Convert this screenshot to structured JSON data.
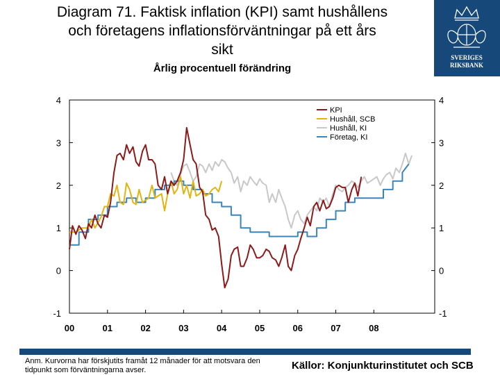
{
  "header": {
    "title_lines": [
      "Diagram 71. Faktisk inflation (KPI) samt hushållens",
      "och företagens inflationsförväntningar på ett års",
      "sikt"
    ],
    "subtitle": "Årlig procentuell förändring"
  },
  "logo": {
    "text_lines": [
      "SVERIGES",
      "RIKSBANK"
    ],
    "colors": {
      "background": "#17487a",
      "ornament": "#ffffff"
    }
  },
  "chart_data": {
    "type": "line",
    "xlabel": "",
    "ylabel": "",
    "xlim": [
      0,
      9.6
    ],
    "ylim": [
      -1,
      4
    ],
    "yticks": [
      -1,
      0,
      1,
      2,
      3,
      4
    ],
    "xtick_labels": [
      "00",
      "01",
      "02",
      "03",
      "04",
      "05",
      "06",
      "07",
      "08"
    ],
    "xtick_positions": [
      0,
      1,
      2,
      3,
      4,
      5,
      6,
      7,
      8
    ],
    "grid": false,
    "legend_position": "top-right",
    "series": [
      {
        "name": "KPI",
        "color": "#8b1a1a",
        "points": [
          [
            0.0,
            0.5
          ],
          [
            0.08,
            1.05
          ],
          [
            0.17,
            0.85
          ],
          [
            0.25,
            1.05
          ],
          [
            0.33,
            0.95
          ],
          [
            0.42,
            0.75
          ],
          [
            0.5,
            1.1
          ],
          [
            0.58,
            1.0
          ],
          [
            0.67,
            1.3
          ],
          [
            0.75,
            1.1
          ],
          [
            0.83,
            1.0
          ],
          [
            0.92,
            1.3
          ],
          [
            1.0,
            1.25
          ],
          [
            1.08,
            1.6
          ],
          [
            1.17,
            2.3
          ],
          [
            1.25,
            2.7
          ],
          [
            1.33,
            2.75
          ],
          [
            1.42,
            2.6
          ],
          [
            1.5,
            2.95
          ],
          [
            1.58,
            2.75
          ],
          [
            1.67,
            2.9
          ],
          [
            1.75,
            2.55
          ],
          [
            1.83,
            2.45
          ],
          [
            1.92,
            2.8
          ],
          [
            2.0,
            2.95
          ],
          [
            2.08,
            2.6
          ],
          [
            2.17,
            2.6
          ],
          [
            2.25,
            2.5
          ],
          [
            2.33,
            2.0
          ],
          [
            2.42,
            1.9
          ],
          [
            2.5,
            2.2
          ],
          [
            2.58,
            1.8
          ],
          [
            2.67,
            2.1
          ],
          [
            2.75,
            2.0
          ],
          [
            2.83,
            2.1
          ],
          [
            2.92,
            2.3
          ],
          [
            3.0,
            2.6
          ],
          [
            3.08,
            3.35
          ],
          [
            3.17,
            2.95
          ],
          [
            3.25,
            2.6
          ],
          [
            3.33,
            2.5
          ],
          [
            3.42,
            1.95
          ],
          [
            3.5,
            1.85
          ],
          [
            3.58,
            1.3
          ],
          [
            3.67,
            1.2
          ],
          [
            3.75,
            0.95
          ],
          [
            3.83,
            1.0
          ],
          [
            3.92,
            0.8
          ],
          [
            4.0,
            0.15
          ],
          [
            4.08,
            -0.4
          ],
          [
            4.17,
            -0.2
          ],
          [
            4.25,
            0.35
          ],
          [
            4.33,
            0.5
          ],
          [
            4.42,
            0.55
          ],
          [
            4.5,
            0.1
          ],
          [
            4.58,
            0.1
          ],
          [
            4.67,
            0.3
          ],
          [
            4.75,
            0.6
          ],
          [
            4.83,
            0.5
          ],
          [
            4.92,
            0.3
          ],
          [
            5.0,
            0.3
          ],
          [
            5.08,
            0.35
          ],
          [
            5.17,
            0.5
          ],
          [
            5.25,
            0.45
          ],
          [
            5.33,
            0.3
          ],
          [
            5.42,
            0.25
          ],
          [
            5.5,
            0.1
          ],
          [
            5.58,
            0.3
          ],
          [
            5.67,
            0.6
          ],
          [
            5.75,
            0.1
          ],
          [
            5.83,
            0.0
          ],
          [
            5.92,
            0.35
          ],
          [
            6.0,
            0.5
          ],
          [
            6.08,
            0.75
          ],
          [
            6.17,
            1.0
          ],
          [
            6.25,
            1.25
          ],
          [
            6.33,
            1.05
          ],
          [
            6.42,
            1.5
          ],
          [
            6.5,
            1.6
          ],
          [
            6.58,
            1.4
          ],
          [
            6.67,
            1.65
          ],
          [
            6.75,
            1.45
          ],
          [
            6.83,
            1.5
          ],
          [
            6.92,
            1.7
          ],
          [
            7.0,
            1.95
          ],
          [
            7.08,
            2.0
          ],
          [
            7.17,
            1.95
          ],
          [
            7.25,
            1.95
          ],
          [
            7.33,
            1.6
          ],
          [
            7.42,
            1.9
          ],
          [
            7.5,
            2.05
          ],
          [
            7.58,
            1.75
          ],
          [
            7.67,
            2.2
          ]
        ]
      },
      {
        "name": "Hushåll, SCB",
        "color": "#e1b40f",
        "points": [
          [
            0.0,
            0.9
          ],
          [
            0.17,
            0.9
          ],
          [
            0.33,
            1.0
          ],
          [
            0.5,
            1.0
          ],
          [
            0.58,
            1.2
          ],
          [
            0.67,
            1.0
          ],
          [
            0.83,
            1.25
          ],
          [
            0.92,
            1.5
          ],
          [
            1.0,
            1.5
          ],
          [
            1.08,
            1.8
          ],
          [
            1.17,
            1.75
          ],
          [
            1.25,
            2.0
          ],
          [
            1.33,
            1.6
          ],
          [
            1.42,
            1.55
          ],
          [
            1.5,
            2.05
          ],
          [
            1.58,
            1.9
          ],
          [
            1.67,
            1.6
          ],
          [
            1.75,
            1.55
          ],
          [
            1.83,
            1.9
          ],
          [
            1.92,
            1.6
          ],
          [
            2.0,
            1.65
          ],
          [
            2.08,
            1.7
          ],
          [
            2.17,
            2.0
          ],
          [
            2.25,
            1.7
          ],
          [
            2.33,
            1.75
          ],
          [
            2.42,
            1.8
          ],
          [
            2.5,
            1.4
          ],
          [
            2.58,
            1.8
          ],
          [
            2.67,
            2.1
          ],
          [
            2.75,
            1.8
          ],
          [
            2.83,
            1.9
          ],
          [
            2.92,
            2.2
          ],
          [
            3.0,
            1.8
          ],
          [
            3.08,
            2.0
          ],
          [
            3.17,
            1.7
          ],
          [
            3.25,
            2.1
          ],
          [
            3.33,
            1.75
          ],
          [
            3.42,
            1.8
          ],
          [
            3.5,
            1.9
          ],
          [
            3.58,
            1.75
          ],
          [
            3.67,
            1.8
          ],
          [
            3.75,
            1.9
          ],
          [
            3.83,
            1.95
          ],
          [
            3.92,
            1.85
          ],
          [
            4.0,
            2.1
          ]
        ]
      },
      {
        "name": "Hushåll, KI",
        "color": "#c8c8c8",
        "points": [
          [
            2.67,
            2.3
          ],
          [
            2.75,
            2.1
          ],
          [
            2.83,
            2.0
          ],
          [
            2.92,
            2.25
          ],
          [
            3.0,
            2.45
          ],
          [
            3.08,
            2.5
          ],
          [
            3.17,
            2.3
          ],
          [
            3.25,
            2.1
          ],
          [
            3.33,
            2.2
          ],
          [
            3.42,
            2.5
          ],
          [
            3.5,
            2.45
          ],
          [
            3.58,
            2.3
          ],
          [
            3.67,
            2.5
          ],
          [
            3.75,
            2.35
          ],
          [
            3.83,
            2.55
          ],
          [
            3.92,
            2.45
          ],
          [
            4.0,
            2.6
          ],
          [
            4.08,
            2.55
          ],
          [
            4.17,
            2.4
          ],
          [
            4.25,
            2.3
          ],
          [
            4.33,
            2.05
          ],
          [
            4.42,
            2.2
          ],
          [
            4.5,
            1.85
          ],
          [
            4.58,
            2.1
          ],
          [
            4.67,
            2.0
          ],
          [
            4.75,
            2.2
          ],
          [
            4.83,
            2.1
          ],
          [
            4.92,
            2.0
          ],
          [
            5.0,
            2.15
          ],
          [
            5.08,
            2.05
          ],
          [
            5.17,
            2.0
          ],
          [
            5.25,
            1.6
          ],
          [
            5.33,
            1.8
          ],
          [
            5.42,
            1.6
          ],
          [
            5.5,
            1.9
          ],
          [
            5.58,
            1.7
          ],
          [
            5.67,
            1.5
          ],
          [
            5.75,
            1.2
          ],
          [
            5.83,
            1.0
          ],
          [
            5.92,
            1.3
          ],
          [
            6.0,
            1.4
          ],
          [
            6.08,
            1.2
          ],
          [
            6.17,
            1.1
          ],
          [
            6.25,
            1.3
          ],
          [
            6.33,
            1.4
          ],
          [
            6.42,
            1.5
          ],
          [
            6.5,
            1.4
          ],
          [
            6.58,
            1.7
          ],
          [
            6.67,
            1.6
          ],
          [
            6.75,
            1.7
          ],
          [
            6.83,
            1.5
          ],
          [
            6.92,
            1.8
          ],
          [
            7.0,
            2.0
          ],
          [
            7.08,
            1.9
          ],
          [
            7.17,
            1.85
          ],
          [
            7.25,
            1.95
          ],
          [
            7.33,
            2.0
          ],
          [
            7.42,
            2.1
          ],
          [
            7.5,
            2.05
          ],
          [
            7.58,
            1.95
          ],
          [
            7.67,
            2.1
          ],
          [
            7.75,
            2.2
          ],
          [
            7.83,
            2.05
          ],
          [
            7.92,
            2.1
          ],
          [
            8.0,
            2.15
          ],
          [
            8.08,
            2.2
          ],
          [
            8.17,
            2.0
          ],
          [
            8.25,
            2.15
          ],
          [
            8.33,
            2.25
          ],
          [
            8.42,
            2.3
          ],
          [
            8.5,
            2.15
          ],
          [
            8.58,
            2.4
          ],
          [
            8.67,
            2.3
          ],
          [
            8.75,
            2.5
          ],
          [
            8.83,
            2.75
          ],
          [
            8.92,
            2.5
          ],
          [
            9.0,
            2.7
          ]
        ]
      },
      {
        "name": "Företag, KI",
        "color": "#3a84b8",
        "points": [
          [
            0.0,
            0.6
          ],
          [
            0.25,
            0.6
          ],
          [
            0.25,
            0.9
          ],
          [
            0.5,
            0.9
          ],
          [
            0.5,
            1.2
          ],
          [
            0.75,
            1.2
          ],
          [
            0.75,
            1.3
          ],
          [
            1.0,
            1.3
          ],
          [
            1.0,
            1.5
          ],
          [
            1.25,
            1.5
          ],
          [
            1.25,
            1.6
          ],
          [
            1.5,
            1.6
          ],
          [
            1.5,
            1.7
          ],
          [
            1.75,
            1.7
          ],
          [
            1.75,
            1.6
          ],
          [
            2.0,
            1.6
          ],
          [
            2.0,
            1.7
          ],
          [
            2.25,
            1.7
          ],
          [
            2.25,
            1.9
          ],
          [
            2.5,
            1.9
          ],
          [
            2.5,
            2.0
          ],
          [
            2.75,
            2.0
          ],
          [
            2.75,
            2.1
          ],
          [
            3.0,
            2.1
          ],
          [
            3.0,
            2.0
          ],
          [
            3.25,
            2.0
          ],
          [
            3.25,
            1.9
          ],
          [
            3.5,
            1.9
          ],
          [
            3.5,
            1.8
          ],
          [
            3.75,
            1.8
          ],
          [
            3.75,
            1.6
          ],
          [
            4.0,
            1.6
          ],
          [
            4.0,
            1.5
          ],
          [
            4.25,
            1.5
          ],
          [
            4.25,
            1.3
          ],
          [
            4.5,
            1.3
          ],
          [
            4.5,
            1.0
          ],
          [
            4.75,
            1.0
          ],
          [
            4.75,
            0.9
          ],
          [
            5.25,
            0.9
          ],
          [
            5.25,
            0.8
          ],
          [
            6.0,
            0.8
          ],
          [
            6.0,
            0.9
          ],
          [
            6.25,
            0.9
          ],
          [
            6.25,
            0.8
          ],
          [
            6.5,
            0.8
          ],
          [
            6.5,
            1.0
          ],
          [
            6.75,
            1.0
          ],
          [
            6.75,
            1.2
          ],
          [
            7.0,
            1.2
          ],
          [
            7.0,
            1.4
          ],
          [
            7.25,
            1.4
          ],
          [
            7.25,
            1.6
          ],
          [
            7.5,
            1.6
          ],
          [
            7.5,
            1.7
          ],
          [
            8.25,
            1.7
          ],
          [
            8.25,
            1.9
          ],
          [
            8.5,
            1.9
          ],
          [
            8.5,
            2.1
          ],
          [
            8.75,
            2.1
          ],
          [
            8.75,
            2.3
          ],
          [
            8.92,
            2.5
          ]
        ]
      }
    ]
  },
  "footer": {
    "note": "Anm. Kurvorna har förskjutits framåt 12 månader för att motsvara den tidpunkt som förväntningarna avser.",
    "sources": "Källor: Konjunkturinstitutet och SCB",
    "bar_color": "#17487a"
  }
}
